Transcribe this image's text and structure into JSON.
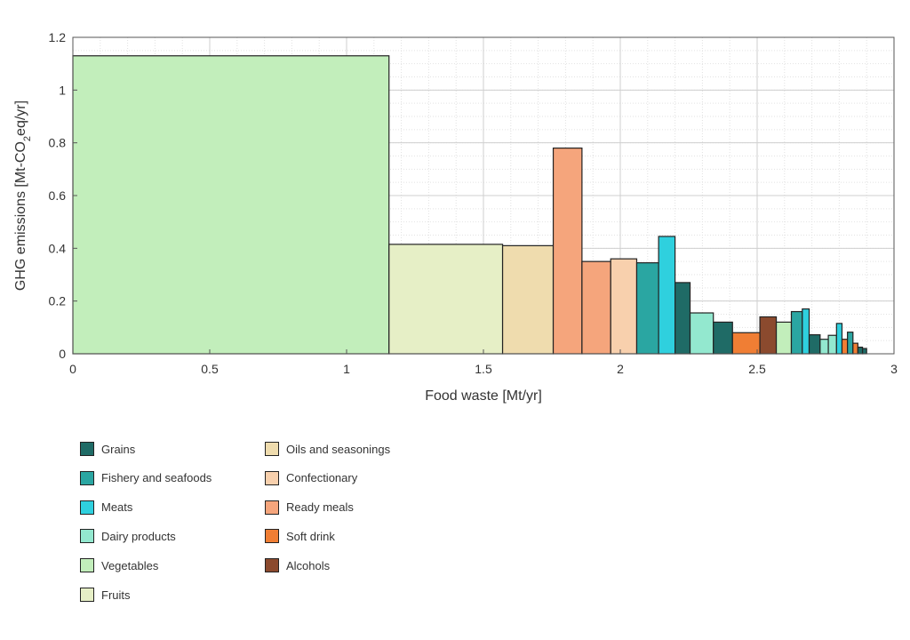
{
  "chart_data": {
    "type": "bar",
    "xlabel": "Food waste [Mt/yr]",
    "ylabel": "GHG emissions [Mt-CO2eq/yr]",
    "xlim": [
      0,
      3
    ],
    "ylim": [
      0,
      1.2
    ],
    "x_ticks": [
      "0",
      "0.5",
      "1",
      "1.5",
      "2",
      "2.5",
      "3"
    ],
    "y_ticks": [
      "0",
      "0.2",
      "0.4",
      "0.6",
      "0.8",
      "1",
      "1.2"
    ],
    "grid": true,
    "legend_position": "below",
    "categories": [
      {
        "name": "Grains",
        "color": "#1f6b66"
      },
      {
        "name": "Fishery and seafoods",
        "color": "#2aa6a2"
      },
      {
        "name": "Meats",
        "color": "#2fd0de"
      },
      {
        "name": "Dairy products",
        "color": "#93e8cf"
      },
      {
        "name": "Vegetables",
        "color": "#c2eebb"
      },
      {
        "name": "Fruits",
        "color": "#e6efc6"
      },
      {
        "name": "Oils and seasonings",
        "color": "#efdcae"
      },
      {
        "name": "Confectionary",
        "color": "#f8d0ad"
      },
      {
        "name": "Ready meals",
        "color": "#f5a57c"
      },
      {
        "name": "Soft drink",
        "color": "#f07e34"
      },
      {
        "name": "Alcohols",
        "color": "#8b4a2e"
      }
    ],
    "bars": [
      {
        "category": "Vegetables",
        "x0": 0.0,
        "x1": 1.155,
        "y": 1.13
      },
      {
        "category": "Fruits",
        "x0": 1.155,
        "x1": 1.57,
        "y": 0.415
      },
      {
        "category": "Oils and seasonings",
        "x0": 1.57,
        "x1": 1.755,
        "y": 0.41
      },
      {
        "category": "Ready meals",
        "x0": 1.755,
        "x1": 1.86,
        "y": 0.78
      },
      {
        "category": "Ready meals",
        "x0": 1.86,
        "x1": 1.965,
        "y": 0.35
      },
      {
        "category": "Confectionary",
        "x0": 1.965,
        "x1": 2.06,
        "y": 0.36
      },
      {
        "category": "Fishery and seafoods",
        "x0": 2.06,
        "x1": 2.14,
        "y": 0.345
      },
      {
        "category": "Meats",
        "x0": 2.14,
        "x1": 2.2,
        "y": 0.445
      },
      {
        "category": "Grains",
        "x0": 2.2,
        "x1": 2.255,
        "y": 0.27
      },
      {
        "category": "Dairy products",
        "x0": 2.255,
        "x1": 2.34,
        "y": 0.155
      },
      {
        "category": "Grains",
        "x0": 2.34,
        "x1": 2.41,
        "y": 0.12
      },
      {
        "category": "Soft drink",
        "x0": 2.41,
        "x1": 2.51,
        "y": 0.08
      },
      {
        "category": "Alcohols",
        "x0": 2.51,
        "x1": 2.57,
        "y": 0.14
      },
      {
        "category": "Vegetables",
        "x0": 2.57,
        "x1": 2.625,
        "y": 0.12
      },
      {
        "category": "Fishery and seafoods",
        "x0": 2.625,
        "x1": 2.665,
        "y": 0.16
      },
      {
        "category": "Meats",
        "x0": 2.665,
        "x1": 2.69,
        "y": 0.17
      },
      {
        "category": "Grains",
        "x0": 2.69,
        "x1": 2.73,
        "y": 0.072
      },
      {
        "category": "Dairy products",
        "x0": 2.73,
        "x1": 2.76,
        "y": 0.055
      },
      {
        "category": "Dairy products",
        "x0": 2.76,
        "x1": 2.79,
        "y": 0.07
      },
      {
        "category": "Meats",
        "x0": 2.79,
        "x1": 2.81,
        "y": 0.115
      },
      {
        "category": "Soft drink",
        "x0": 2.81,
        "x1": 2.83,
        "y": 0.055
      },
      {
        "category": "Fishery and seafoods",
        "x0": 2.83,
        "x1": 2.85,
        "y": 0.082
      },
      {
        "category": "Soft drink",
        "x0": 2.85,
        "x1": 2.868,
        "y": 0.04
      },
      {
        "category": "Grains",
        "x0": 2.868,
        "x1": 2.885,
        "y": 0.025
      },
      {
        "category": "Grains",
        "x0": 2.885,
        "x1": 2.9,
        "y": 0.02
      }
    ]
  }
}
